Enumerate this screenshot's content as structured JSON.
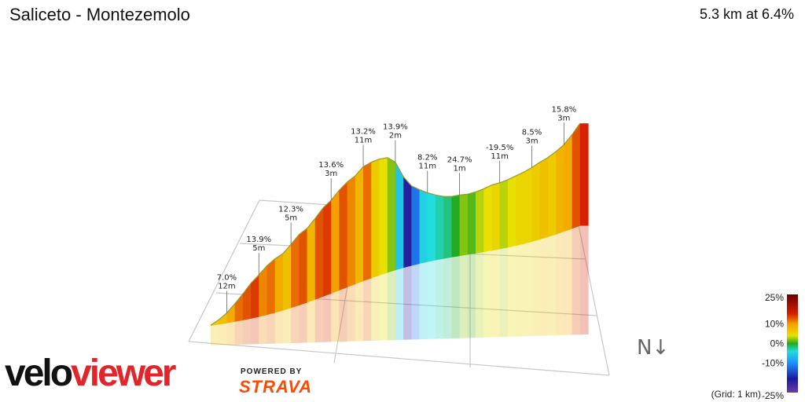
{
  "header": {
    "title": "Saliceto - Montezemolo",
    "summary": "5.3 km at 6.4%"
  },
  "brand": {
    "logo_left": "velo",
    "logo_right": "viewer",
    "powered_by": "POWERED BY",
    "strava": "STRAVA"
  },
  "compass": {
    "label": "N↓"
  },
  "grid_note": "(Grid: 1 km)",
  "legend": {
    "ticks": [
      "25%",
      "10%",
      "0%",
      "-10%",
      "-25%"
    ],
    "stops": [
      {
        "value": 25,
        "color": "#6b0000"
      },
      {
        "value": 15,
        "color": "#d62000"
      },
      {
        "value": 10,
        "color": "#f5a000"
      },
      {
        "value": 4,
        "color": "#e8e000"
      },
      {
        "value": 0,
        "color": "#22aa22"
      },
      {
        "value": -4,
        "color": "#22dddd"
      },
      {
        "value": -10,
        "color": "#1e90ff"
      },
      {
        "value": -18,
        "color": "#1a1aa0"
      },
      {
        "value": -25,
        "color": "#6b3fa0"
      }
    ]
  },
  "chart_data": {
    "type": "area",
    "distance_km": 5.3,
    "avg_gradient_pct": 6.4,
    "annotations": [
      {
        "gradient": "7.0%",
        "length": "12m"
      },
      {
        "gradient": "13.9%",
        "length": "5m"
      },
      {
        "gradient": "12.3%",
        "length": "5m"
      },
      {
        "gradient": "13.6%",
        "length": "3m"
      },
      {
        "gradient": "13.2%",
        "length": "11m"
      },
      {
        "gradient": "13.9%",
        "length": "2m"
      },
      {
        "gradient": "8.2%",
        "length": "11m"
      },
      {
        "gradient": "24.7%",
        "length": "1m"
      },
      {
        "gradient": "-19.5%",
        "length": "11m"
      },
      {
        "gradient": "8.5%",
        "length": "3m"
      },
      {
        "gradient": "15.8%",
        "length": "3m"
      }
    ],
    "gradient_profile": [
      6,
      7,
      9,
      12,
      13,
      14,
      11,
      12,
      9,
      7,
      12,
      13,
      8,
      13,
      14,
      10,
      13,
      11,
      8,
      12,
      6,
      4,
      2,
      -6,
      -19,
      -12,
      -5,
      -4,
      -3,
      -2,
      0,
      2,
      1,
      3,
      4,
      5,
      3,
      4,
      5,
      5,
      6,
      7,
      6,
      8,
      9,
      13,
      15
    ]
  }
}
